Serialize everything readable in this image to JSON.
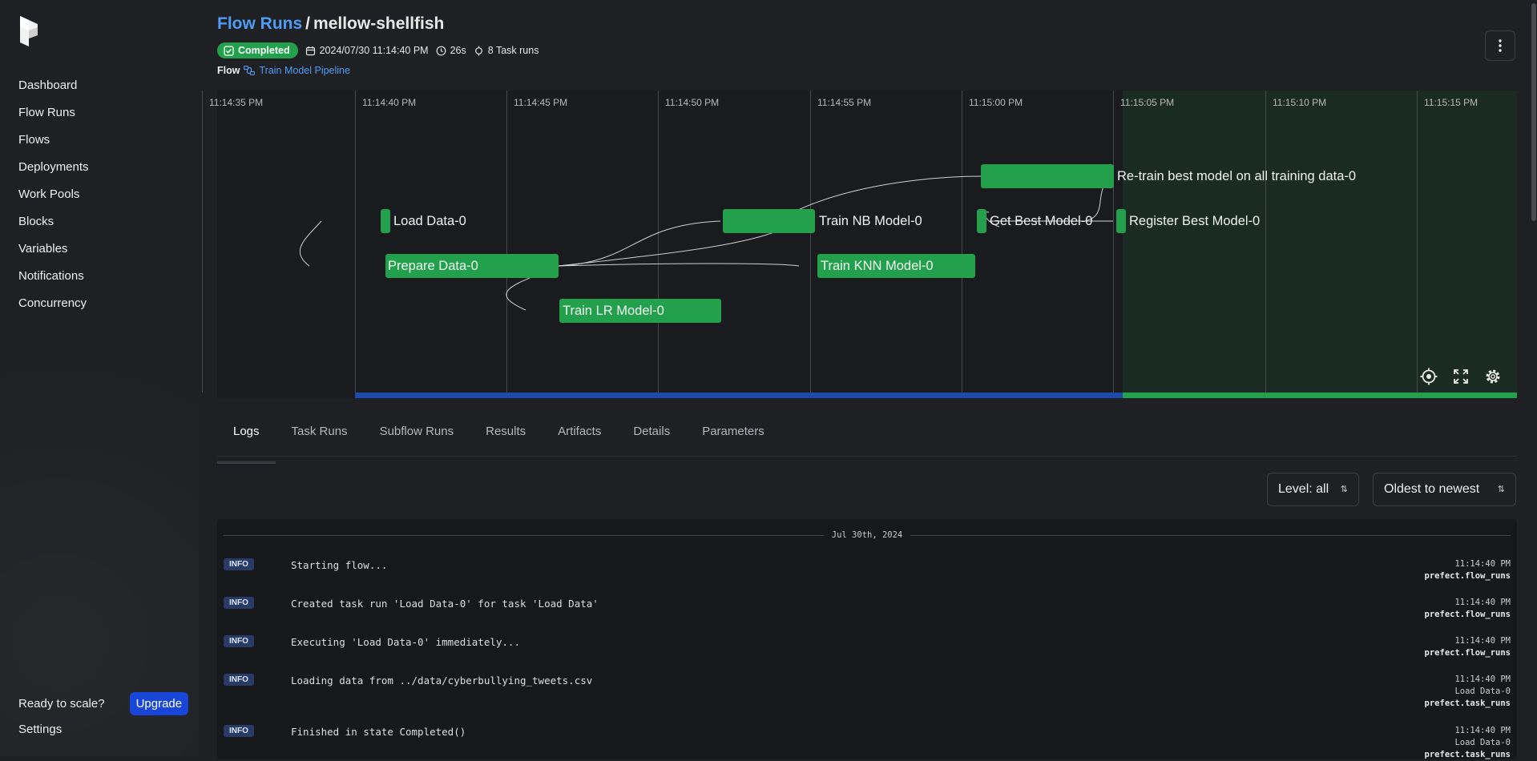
{
  "sidebar": {
    "items": [
      {
        "label": "Dashboard"
      },
      {
        "label": "Flow Runs"
      },
      {
        "label": "Flows"
      },
      {
        "label": "Deployments"
      },
      {
        "label": "Work Pools"
      },
      {
        "label": "Blocks"
      },
      {
        "label": "Variables"
      },
      {
        "label": "Notifications"
      },
      {
        "label": "Concurrency"
      }
    ],
    "scale_text": "Ready to scale?",
    "upgrade_label": "Upgrade",
    "settings_label": "Settings"
  },
  "header": {
    "breadcrumb_link": "Flow Runs",
    "separator": "/",
    "run_name": "mellow-shellfish",
    "status": "Completed",
    "start_time": "2024/07/30 11:14:40 PM",
    "duration": "26s",
    "task_runs": "8 Task runs",
    "flow_label": "Flow",
    "flow_name": "Train Model Pipeline"
  },
  "timeline": {
    "ticks": [
      "11:14:35 PM",
      "11:14:40 PM",
      "11:14:45 PM",
      "11:14:50 PM",
      "11:14:55 PM",
      "11:15:00 PM",
      "11:15:05 PM",
      "11:15:10 PM",
      "11:15:15 PM"
    ],
    "nodes": {
      "load_data": "Load Data-0",
      "prepare_data": "Prepare Data-0",
      "train_lr": "Train LR Model-0",
      "train_nb": "Train NB Model-0",
      "train_knn": "Train KNN Model-0",
      "get_best": "Get Best Model-0",
      "retrain": "Re-train best model on all training data-0",
      "register": "Register Best Model-0"
    },
    "colors": {
      "completed": "#22a04c",
      "past": "#1d4aaa",
      "future": "#1a2b23"
    }
  },
  "tabs": [
    {
      "label": "Logs"
    },
    {
      "label": "Task Runs"
    },
    {
      "label": "Subflow Runs"
    },
    {
      "label": "Results"
    },
    {
      "label": "Artifacts"
    },
    {
      "label": "Details"
    },
    {
      "label": "Parameters"
    }
  ],
  "filters": {
    "level": "Level: all",
    "sort": "Oldest to newest"
  },
  "logs": {
    "date": "Jul 30th, 2024",
    "entries": [
      {
        "level": "INFO",
        "message": "Starting flow...",
        "time": "11:14:40 PM",
        "task": "",
        "source": "prefect.flow_runs"
      },
      {
        "level": "INFO",
        "message": "Created task run 'Load Data-0' for task 'Load Data'",
        "time": "11:14:40 PM",
        "task": "",
        "source": "prefect.flow_runs"
      },
      {
        "level": "INFO",
        "message": "Executing 'Load Data-0' immediately...",
        "time": "11:14:40 PM",
        "task": "",
        "source": "prefect.flow_runs"
      },
      {
        "level": "INFO",
        "message": "Loading data from ../data/cyberbullying_tweets.csv",
        "time": "11:14:40 PM",
        "task": "Load Data-0",
        "source": "prefect.task_runs"
      },
      {
        "level": "INFO",
        "message": "Finished in state Completed()",
        "time": "11:14:40 PM",
        "task": "Load Data-0",
        "source": "prefect.task_runs"
      }
    ]
  }
}
